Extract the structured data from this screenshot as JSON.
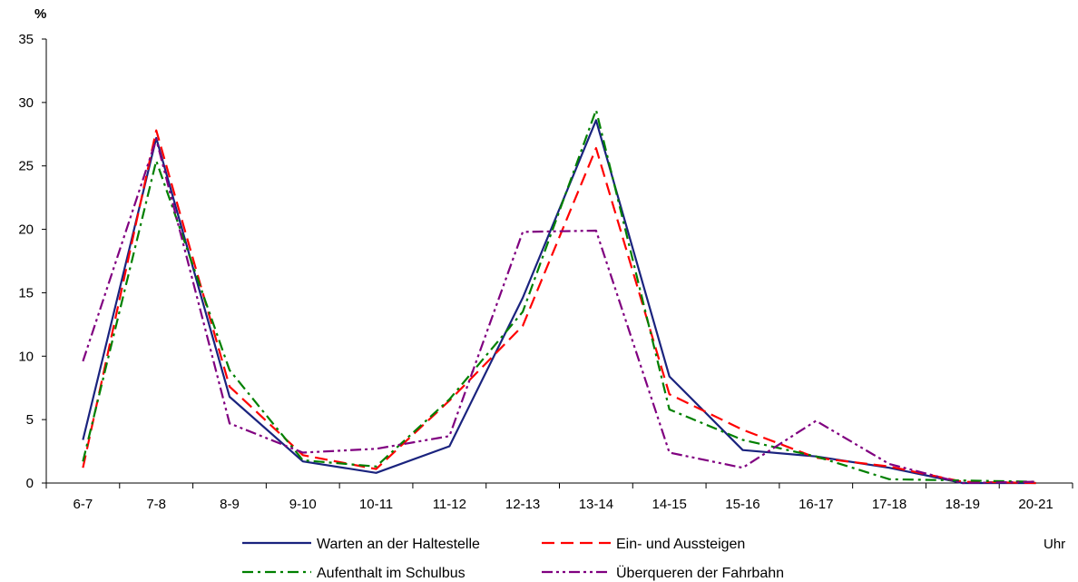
{
  "chart_data": {
    "type": "line",
    "ylabel": "%",
    "xlabel": "Uhr",
    "ylim": [
      0,
      35
    ],
    "yticks": [
      0,
      5,
      10,
      15,
      20,
      25,
      30,
      35
    ],
    "categories": [
      "6-7",
      "7-8",
      "8-9",
      "9-10",
      "10-11",
      "11-12",
      "12-13",
      "13-14",
      "14-15",
      "15-16",
      "16-17",
      "17-18",
      "18-19",
      "20-21"
    ],
    "grid": false,
    "legend_position": "bottom",
    "series": [
      {
        "name": "Warten an der Haltestelle",
        "color": "#1a237e",
        "dash": "solid",
        "values": [
          3.4,
          27.2,
          6.8,
          1.7,
          0.8,
          2.9,
          14.6,
          28.6,
          8.4,
          2.6,
          2.1,
          1.2,
          0.0,
          0.0
        ]
      },
      {
        "name": "Ein- und Aussteigen",
        "color": "#ff0000",
        "dash": "dash",
        "values": [
          1.2,
          27.8,
          7.6,
          2.2,
          1.1,
          6.5,
          12.4,
          26.4,
          7.0,
          4.2,
          2.0,
          1.3,
          0.1,
          0.0
        ]
      },
      {
        "name": "Aufenthalt im Schulbus",
        "color": "#008000",
        "dash": "dashdot",
        "values": [
          1.7,
          25.4,
          8.9,
          1.8,
          1.3,
          6.6,
          13.5,
          29.4,
          5.8,
          3.4,
          2.1,
          0.3,
          0.2,
          0.1
        ]
      },
      {
        "name": "Überqueren der Fahrbahn",
        "color": "#800080",
        "dash": "dashdotdot",
        "values": [
          9.6,
          27.1,
          4.7,
          2.4,
          2.7,
          3.7,
          19.8,
          19.9,
          2.4,
          1.2,
          4.9,
          1.5,
          0.0,
          0.1
        ]
      }
    ]
  }
}
